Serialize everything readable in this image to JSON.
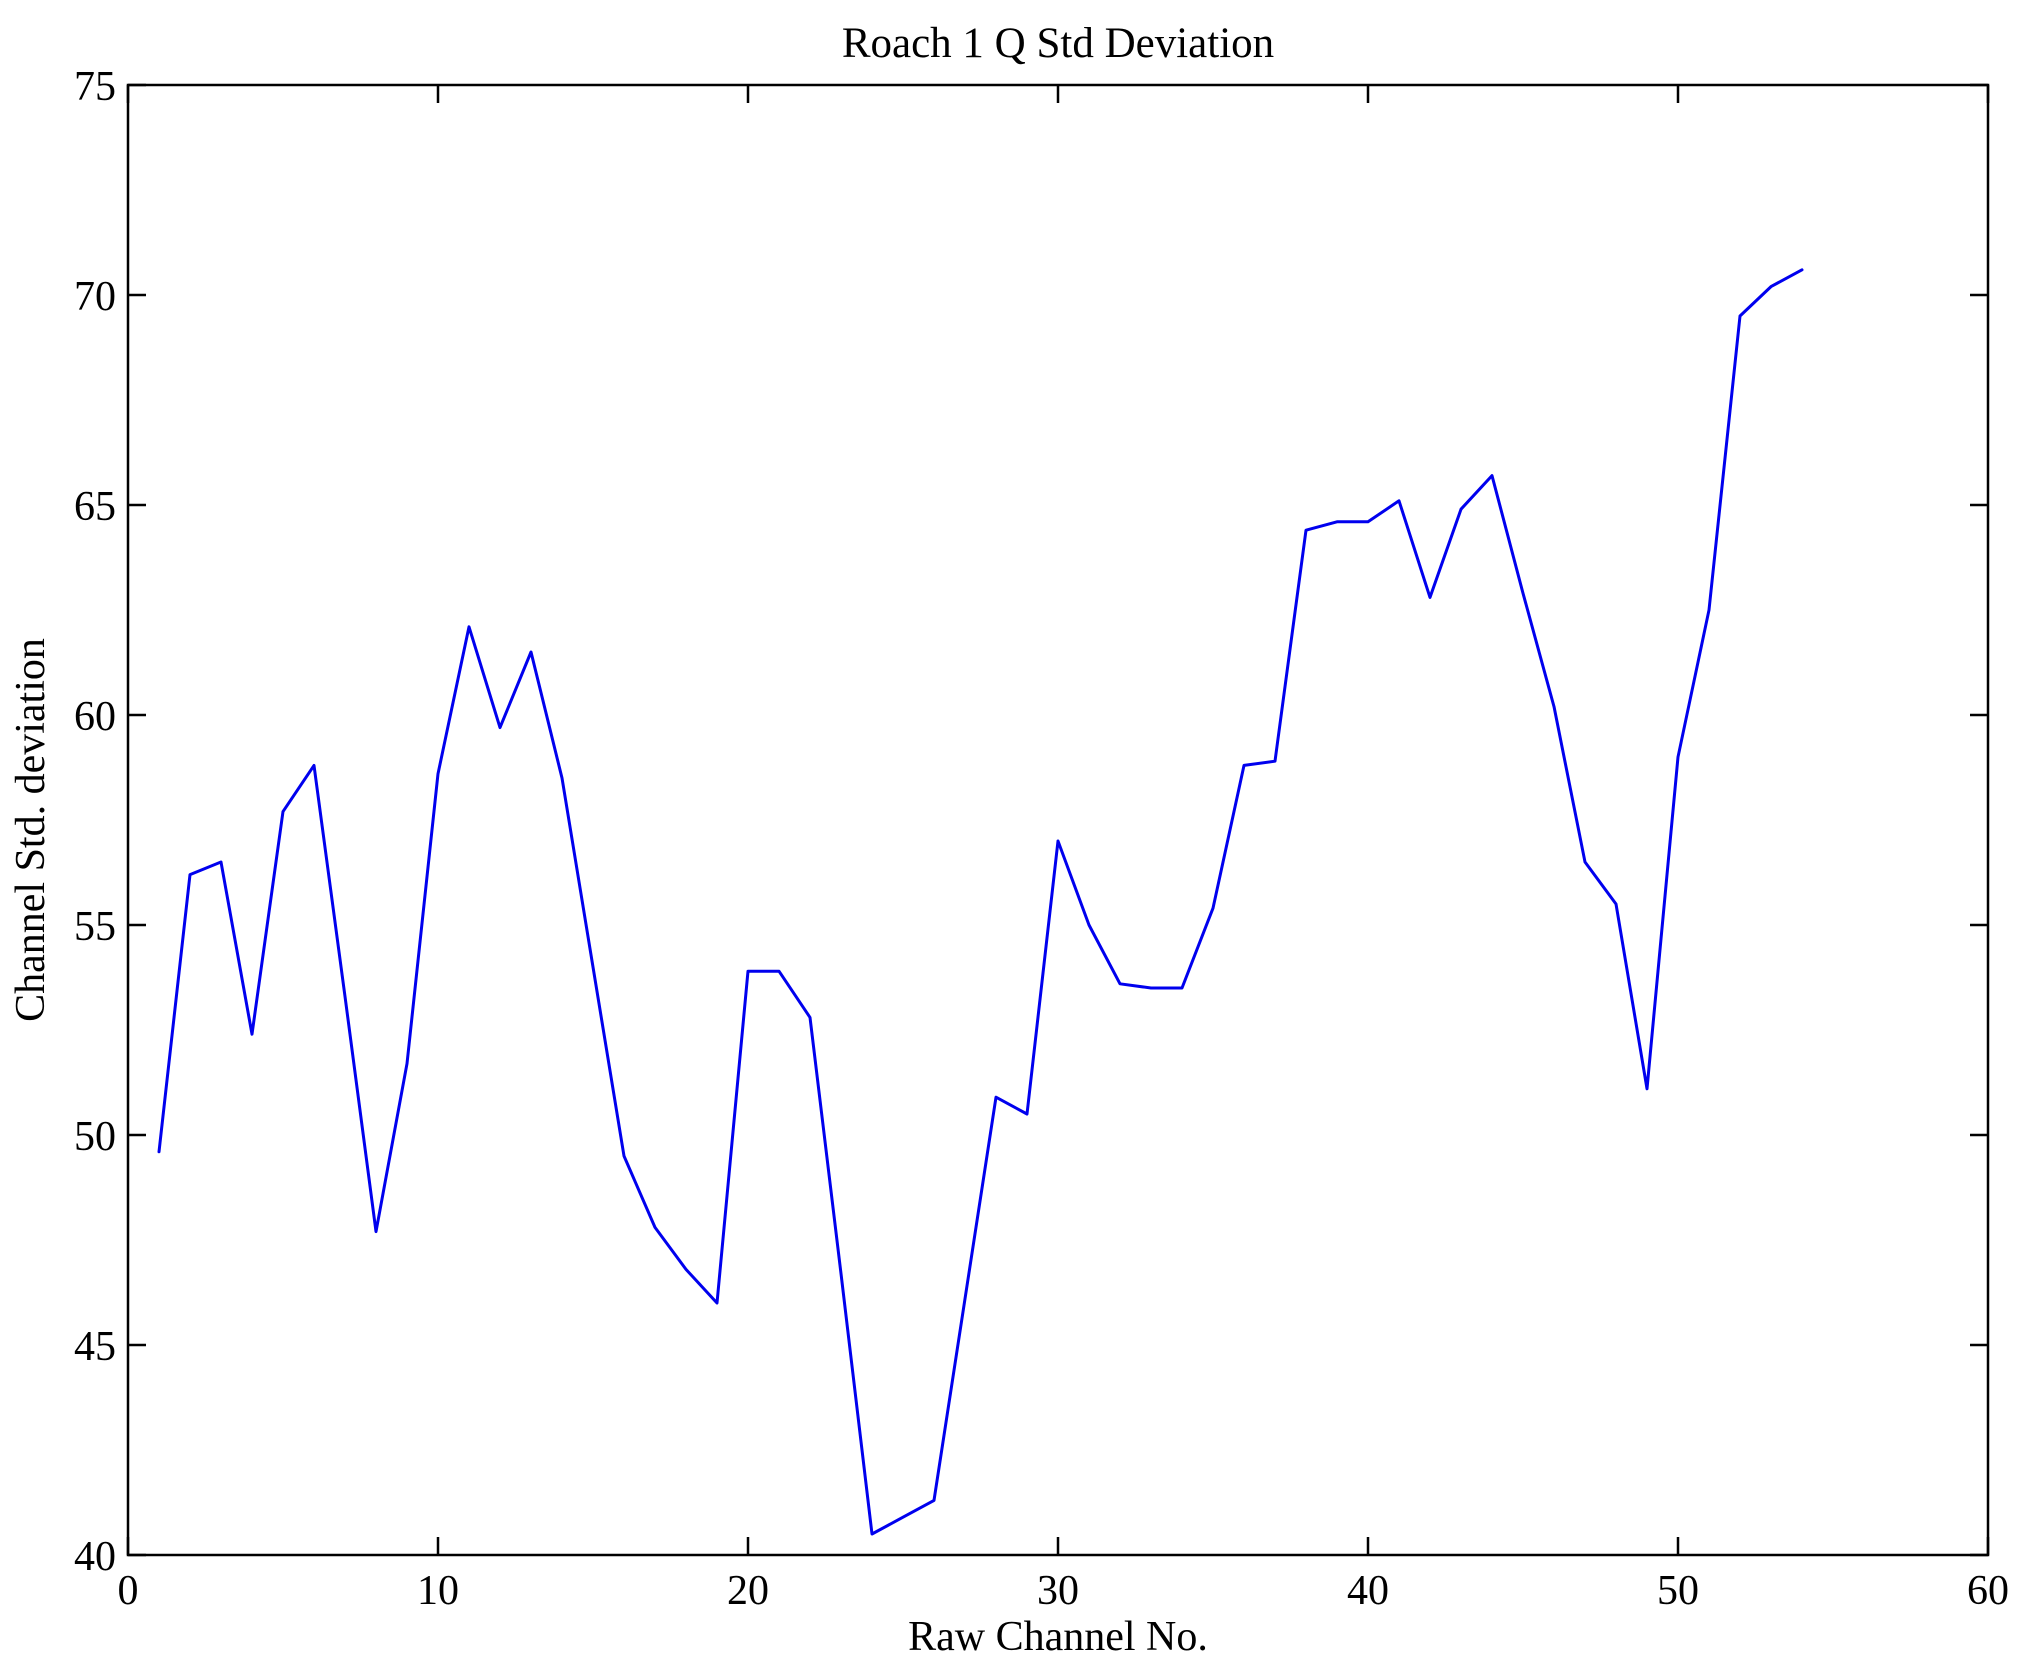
{
  "figure": {
    "title": "Roach 1 Q Std Deviation",
    "xlabel": "Raw Channel No.",
    "ylabel": "Channel Std. deviation"
  },
  "chart_data": {
    "type": "line",
    "title": "Roach 1 Q Std Deviation",
    "xlabel": "Raw Channel No.",
    "ylabel": "Channel Std. deviation",
    "xlim": [
      0,
      60
    ],
    "ylim": [
      40,
      75
    ],
    "xticks": [
      0,
      10,
      20,
      30,
      40,
      50,
      60
    ],
    "yticks": [
      40,
      45,
      50,
      55,
      60,
      65,
      70,
      75
    ],
    "grid": false,
    "legend": "none",
    "line_color": "#0000ee",
    "axis_color": "#000000",
    "x": [
      1,
      2,
      3,
      4,
      5,
      6,
      7,
      8,
      9,
      10,
      11,
      12,
      13,
      14,
      15,
      16,
      17,
      18,
      19,
      20,
      21,
      22,
      23,
      24,
      25,
      26,
      27,
      28,
      29,
      30,
      31,
      32,
      33,
      34,
      35,
      36,
      37,
      38,
      39,
      40,
      41,
      42,
      43,
      44,
      45,
      46,
      47,
      48,
      49,
      50,
      51,
      52,
      53,
      54
    ],
    "y": [
      49.6,
      56.2,
      56.5,
      52.4,
      57.7,
      58.8,
      53.3,
      47.7,
      51.7,
      58.6,
      62.1,
      59.7,
      61.5,
      58.5,
      54.0,
      49.5,
      47.8,
      46.8,
      46.0,
      53.9,
      53.9,
      52.8,
      46.7,
      40.5,
      40.9,
      41.3,
      46.1,
      50.9,
      50.5,
      57.0,
      55.0,
      53.6,
      53.5,
      53.5,
      55.4,
      58.8,
      58.9,
      64.4,
      64.6,
      64.6,
      65.1,
      62.8,
      64.9,
      65.7,
      62.9,
      60.2,
      56.5,
      55.5,
      51.1,
      59.0,
      62.5,
      69.5,
      70.2,
      70.6
    ]
  }
}
